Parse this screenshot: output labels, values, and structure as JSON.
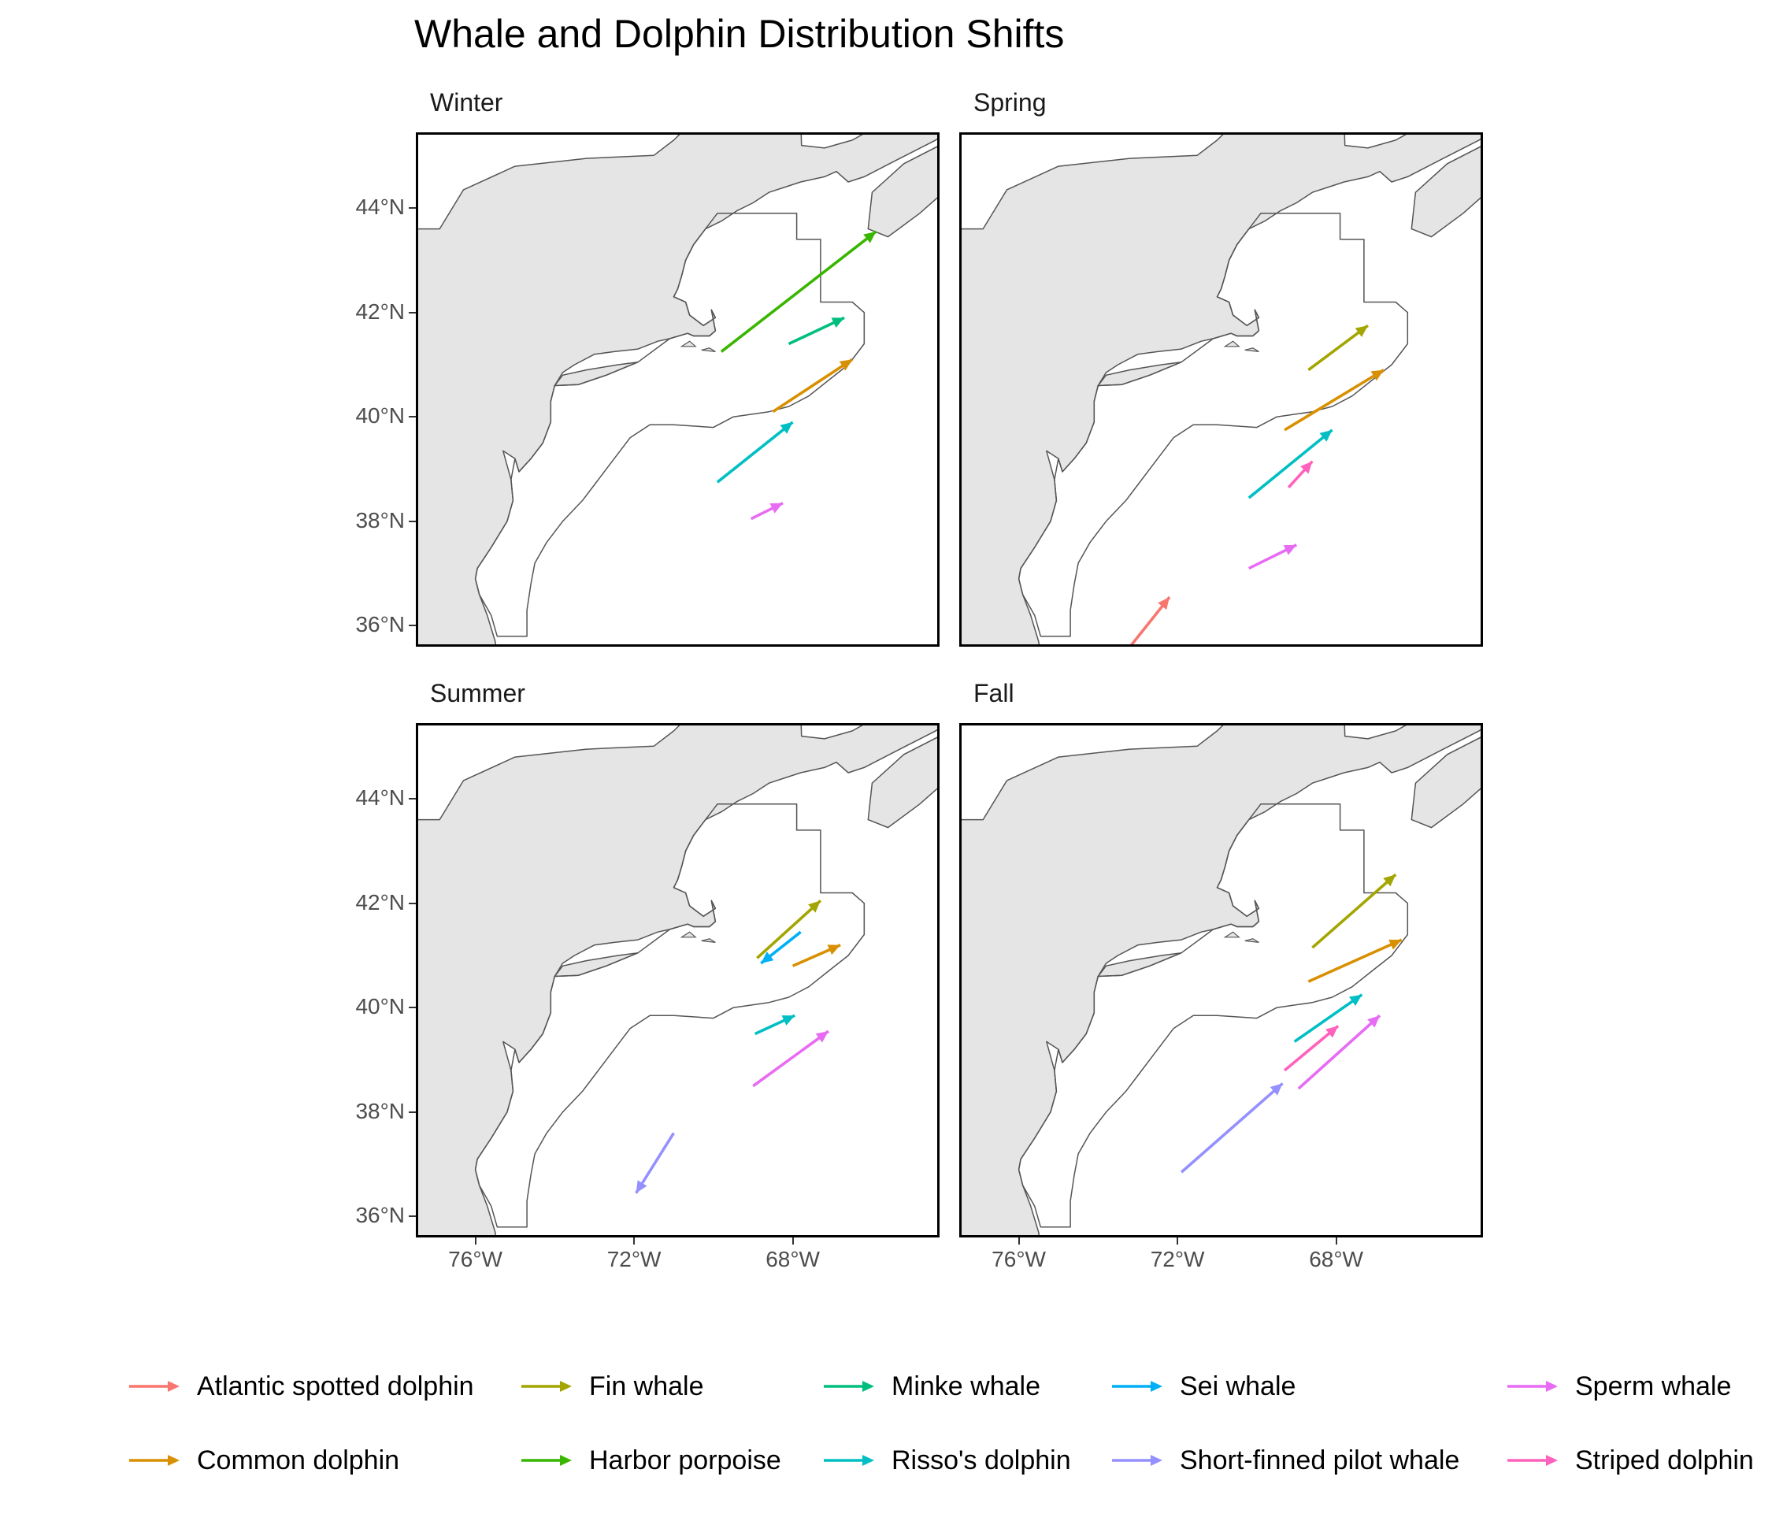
{
  "chart_data": {
    "type": "facet-map-arrows",
    "title": "Whale and Dolphin Distribution Shifts",
    "xlim": [
      -77.5,
      -64.3
    ],
    "ylim": [
      35.6,
      45.45
    ],
    "x_ticks": [
      -76,
      -72,
      -68
    ],
    "x_tick_labels": [
      "76°W",
      "72°W",
      "68°W"
    ],
    "y_ticks": [
      36,
      38,
      40,
      42,
      44
    ],
    "y_tick_labels": [
      "36°N",
      "38°N",
      "40°N",
      "42°N",
      "44°N"
    ],
    "legend_position": "bottom",
    "species": [
      {
        "name": "Atlantic spotted dolphin",
        "color": "#F8766D"
      },
      {
        "name": "Common dolphin",
        "color": "#D89000"
      },
      {
        "name": "Fin whale",
        "color": "#A3A500"
      },
      {
        "name": "Harbor porpoise",
        "color": "#39B600"
      },
      {
        "name": "Minke whale",
        "color": "#00BF7D"
      },
      {
        "name": "Risso's dolphin",
        "color": "#00BFC4"
      },
      {
        "name": "Sei whale",
        "color": "#00B0F6"
      },
      {
        "name": "Short-finned pilot whale",
        "color": "#9590FF"
      },
      {
        "name": "Sperm whale",
        "color": "#E76BF3"
      },
      {
        "name": "Striped dolphin",
        "color": "#FF62BC"
      }
    ],
    "facets": [
      {
        "name": "Winter",
        "arrows": [
          {
            "species": "Harbor porpoise",
            "x0": -69.8,
            "y0": 41.25,
            "x1": -65.9,
            "y1": 43.55
          },
          {
            "species": "Minke whale",
            "x0": -68.1,
            "y0": 41.4,
            "x1": -66.7,
            "y1": 41.9
          },
          {
            "species": "Common dolphin",
            "x0": -68.5,
            "y0": 40.1,
            "x1": -66.5,
            "y1": 41.1
          },
          {
            "species": "Risso's dolphin",
            "x0": -69.9,
            "y0": 38.75,
            "x1": -68.0,
            "y1": 39.9
          },
          {
            "species": "Sperm whale",
            "x0": -69.05,
            "y0": 38.05,
            "x1": -68.25,
            "y1": 38.35
          }
        ]
      },
      {
        "name": "Spring",
        "arrows": [
          {
            "species": "Fin whale",
            "x0": -68.7,
            "y0": 40.9,
            "x1": -67.2,
            "y1": 41.75
          },
          {
            "species": "Common dolphin",
            "x0": -69.3,
            "y0": 39.75,
            "x1": -66.8,
            "y1": 40.9
          },
          {
            "species": "Risso's dolphin",
            "x0": -70.2,
            "y0": 38.45,
            "x1": -68.1,
            "y1": 39.75
          },
          {
            "species": "Striped dolphin",
            "x0": -69.2,
            "y0": 38.65,
            "x1": -68.6,
            "y1": 39.15
          },
          {
            "species": "Sperm whale",
            "x0": -70.2,
            "y0": 37.1,
            "x1": -69.0,
            "y1": 37.55
          },
          {
            "species": "Atlantic spotted dolphin",
            "x0": -73.3,
            "y0": 35.5,
            "x1": -72.2,
            "y1": 36.55
          }
        ]
      },
      {
        "name": "Summer",
        "arrows": [
          {
            "species": "Fin whale",
            "x0": -68.9,
            "y0": 40.95,
            "x1": -67.3,
            "y1": 42.05
          },
          {
            "species": "Sei whale",
            "x0": -67.8,
            "y0": 41.45,
            "x1": -68.8,
            "y1": 40.85
          },
          {
            "species": "Common dolphin",
            "x0": -68.0,
            "y0": 40.8,
            "x1": -66.8,
            "y1": 41.2
          },
          {
            "species": "Risso's dolphin",
            "x0": -68.95,
            "y0": 39.5,
            "x1": -67.95,
            "y1": 39.85
          },
          {
            "species": "Sperm whale",
            "x0": -69.0,
            "y0": 38.5,
            "x1": -67.1,
            "y1": 39.55
          },
          {
            "species": "Short-finned pilot whale",
            "x0": -71.0,
            "y0": 37.6,
            "x1": -71.95,
            "y1": 36.45
          }
        ]
      },
      {
        "name": "Fall",
        "arrows": [
          {
            "species": "Fin whale",
            "x0": -68.6,
            "y0": 41.15,
            "x1": -66.5,
            "y1": 42.55
          },
          {
            "species": "Common dolphin",
            "x0": -68.7,
            "y0": 40.5,
            "x1": -66.35,
            "y1": 41.3
          },
          {
            "species": "Risso's dolphin",
            "x0": -69.05,
            "y0": 39.35,
            "x1": -67.35,
            "y1": 40.25
          },
          {
            "species": "Striped dolphin",
            "x0": -69.3,
            "y0": 38.8,
            "x1": -67.95,
            "y1": 39.65
          },
          {
            "species": "Sperm whale",
            "x0": -68.95,
            "y0": 38.45,
            "x1": -66.9,
            "y1": 39.85
          },
          {
            "species": "Short-finned pilot whale",
            "x0": -71.9,
            "y0": 36.85,
            "x1": -69.35,
            "y1": 38.55
          }
        ]
      }
    ]
  }
}
